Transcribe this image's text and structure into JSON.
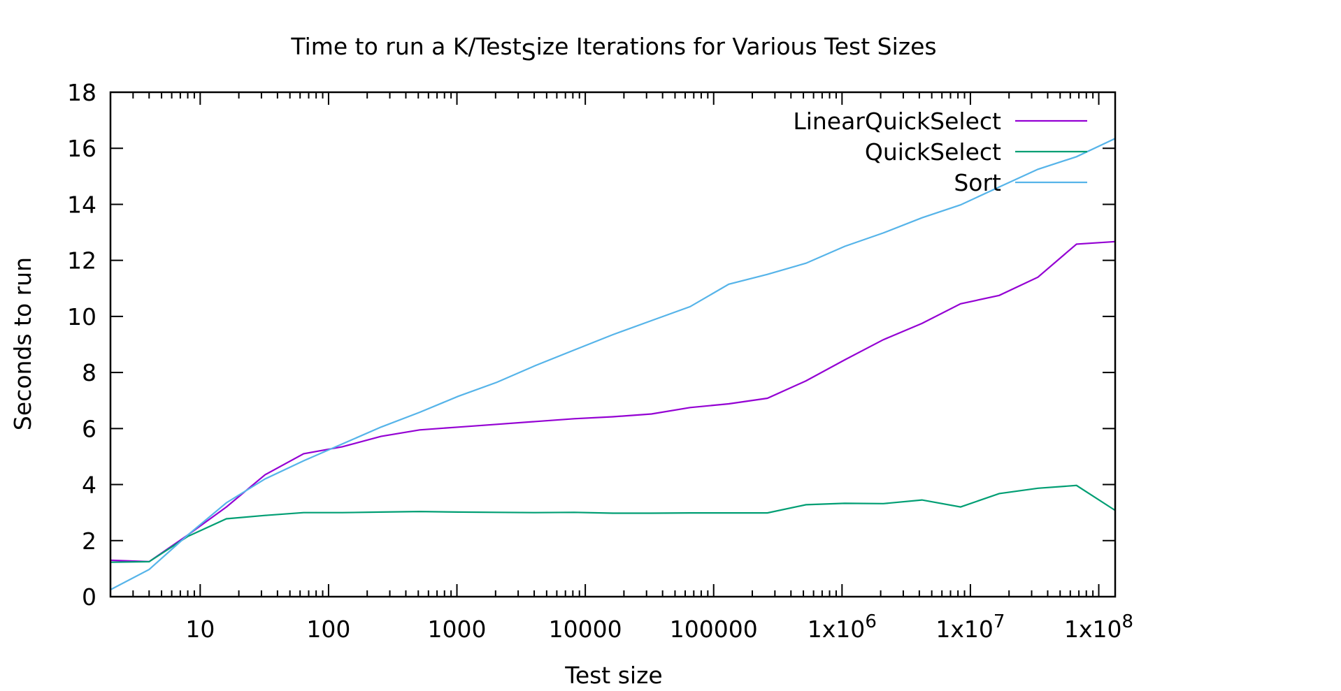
{
  "chart_data": {
    "type": "line",
    "title": {
      "main": "Time to run a K/Test",
      "subscript": "S",
      "rest": "ize Iterations for Various Test Sizes"
    },
    "xlabel": "Test size",
    "ylabel": "Seconds to run",
    "x_scale": "log10",
    "xlim": [
      2,
      134217728
    ],
    "ylim": [
      0,
      18
    ],
    "x_ticks": [
      {
        "value": 10,
        "label": "10"
      },
      {
        "value": 100,
        "label": "100"
      },
      {
        "value": 1000,
        "label": "1000"
      },
      {
        "value": 10000,
        "label": "10000"
      },
      {
        "value": 100000,
        "label": "100000"
      },
      {
        "value": 1000000,
        "label": "1x10",
        "sup": "6"
      },
      {
        "value": 10000000,
        "label": "1x10",
        "sup": "7"
      },
      {
        "value": 100000000,
        "label": "1x10",
        "sup": "8"
      }
    ],
    "y_ticks": [
      {
        "value": 0,
        "label": "0"
      },
      {
        "value": 2,
        "label": "2"
      },
      {
        "value": 4,
        "label": "4"
      },
      {
        "value": 6,
        "label": "6"
      },
      {
        "value": 8,
        "label": "8"
      },
      {
        "value": 10,
        "label": "10"
      },
      {
        "value": 12,
        "label": "12"
      },
      {
        "value": 14,
        "label": "14"
      },
      {
        "value": 16,
        "label": "16"
      },
      {
        "value": 18,
        "label": "18"
      }
    ],
    "grid": false,
    "legend_position": "top-right",
    "x": [
      2,
      4,
      8,
      16,
      32,
      64,
      128,
      256,
      512,
      1024,
      2048,
      4096,
      8192,
      16384,
      32768,
      65536,
      131072,
      262144,
      524288,
      1048576,
      2097152,
      4194304,
      8388608,
      16777216,
      33554432,
      67108864,
      134217728
    ],
    "series": [
      {
        "name": "LinearQuickSelect",
        "color": "#9400d3",
        "values": [
          1.3,
          1.25,
          2.2,
          3.2,
          4.35,
          5.1,
          5.35,
          5.72,
          5.95,
          6.05,
          6.15,
          6.25,
          6.35,
          6.42,
          6.52,
          6.75,
          6.88,
          7.08,
          7.7,
          8.45,
          9.17,
          9.75,
          10.45,
          10.75,
          11.4,
          12.58,
          12.67
        ]
      },
      {
        "name": "QuickSelect",
        "color": "#009e73",
        "values": [
          1.23,
          1.25,
          2.15,
          2.78,
          2.9,
          3.0,
          3.0,
          3.02,
          3.04,
          3.02,
          3.01,
          3.0,
          3.01,
          2.98,
          2.98,
          2.99,
          2.99,
          2.99,
          3.28,
          3.33,
          3.32,
          3.45,
          3.2,
          3.68,
          3.87,
          3.97,
          3.08
        ]
      },
      {
        "name": "Sort",
        "color": "#56b4e9",
        "values": [
          0.25,
          0.97,
          2.2,
          3.35,
          4.2,
          4.85,
          5.45,
          6.05,
          6.58,
          7.15,
          7.65,
          8.25,
          8.8,
          9.35,
          9.85,
          10.35,
          11.15,
          11.5,
          11.9,
          12.5,
          12.98,
          13.52,
          13.98,
          14.62,
          15.25,
          15.7,
          16.35
        ]
      }
    ]
  }
}
